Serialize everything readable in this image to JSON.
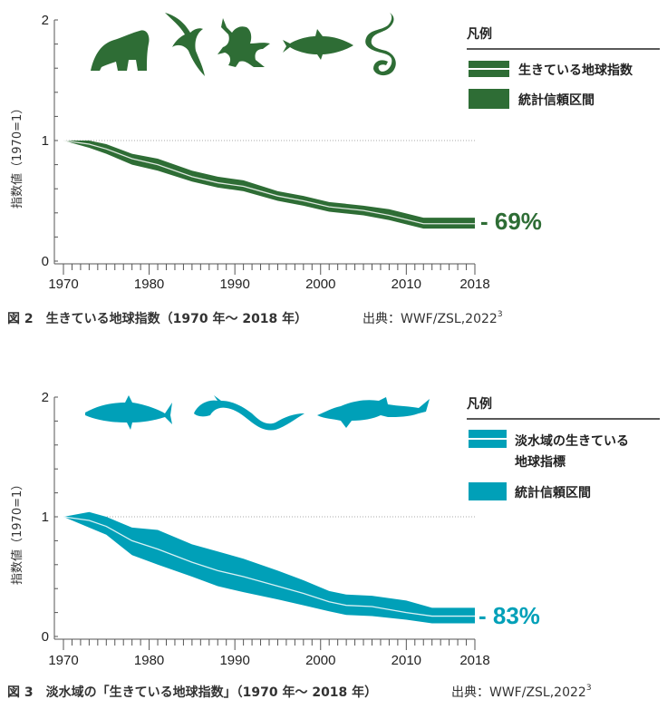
{
  "chart_data": [
    {
      "type": "area",
      "title": "図 2　生きている地球指数（1970 年～ 2018 年）",
      "source": "出典：WWF/ZSL,2022",
      "source_sup": "3",
      "ylabel": "指数値（1970=1）",
      "ylim": [
        0,
        2
      ],
      "yticks": [
        "0",
        "1",
        "2"
      ],
      "xlim": [
        1970,
        2018
      ],
      "xticks": [
        "1970",
        "1980",
        "1990",
        "2000",
        "2010",
        "2018"
      ],
      "color": "#2e6d35",
      "legend_title": "凡例",
      "legend": [
        "生きている地球指数",
        "統計信頼区間"
      ],
      "annotation": "- 69%",
      "reference_line": 1,
      "icons": [
        "gorilla-icon",
        "bird-icon",
        "frog-icon",
        "fish-icon",
        "snake-icon"
      ],
      "x": [
        1970,
        1973,
        1975,
        1978,
        1981,
        1985,
        1988,
        1991,
        1995,
        1998,
        2001,
        2005,
        2008,
        2012,
        2015,
        2018
      ],
      "index": [
        1.0,
        0.97,
        0.93,
        0.85,
        0.8,
        0.7,
        0.65,
        0.62,
        0.54,
        0.5,
        0.45,
        0.42,
        0.38,
        0.31,
        0.31,
        0.31
      ],
      "lower": [
        1.0,
        0.94,
        0.89,
        0.8,
        0.75,
        0.66,
        0.61,
        0.58,
        0.5,
        0.46,
        0.41,
        0.38,
        0.34,
        0.27,
        0.27,
        0.27
      ],
      "upper": [
        1.0,
        1.0,
        0.97,
        0.89,
        0.85,
        0.75,
        0.7,
        0.67,
        0.58,
        0.54,
        0.49,
        0.46,
        0.43,
        0.36,
        0.36,
        0.36
      ]
    },
    {
      "type": "area",
      "title": "図 3　淡水域の「生きている地球指数」（1970 年～ 2018 年）",
      "source": "出典：WWF/ZSL,2022",
      "source_sup": "3",
      "ylabel": "指数値（1970=1）",
      "ylim": [
        0,
        2
      ],
      "yticks": [
        "0",
        "1",
        "2"
      ],
      "xlim": [
        1970,
        2018
      ],
      "xticks": [
        "1970",
        "1980",
        "1990",
        "2000",
        "2010",
        "2018"
      ],
      "color": "#00a0b8",
      "legend_title": "凡例",
      "legend": [
        "淡水域の生きている",
        "地球指標",
        "統計信頼区間"
      ],
      "annotation": "- 83%",
      "reference_line": 1,
      "icons": [
        "salmon-icon",
        "eel-icon",
        "sturgeon-icon"
      ],
      "x": [
        1970,
        1973,
        1975,
        1978,
        1981,
        1985,
        1988,
        1991,
        1995,
        1998,
        2001,
        2003,
        2006,
        2010,
        2013,
        2018
      ],
      "index": [
        1.0,
        0.97,
        0.92,
        0.8,
        0.73,
        0.62,
        0.55,
        0.5,
        0.42,
        0.36,
        0.29,
        0.26,
        0.25,
        0.2,
        0.17,
        0.17
      ],
      "lower": [
        1.0,
        0.91,
        0.85,
        0.68,
        0.6,
        0.5,
        0.42,
        0.37,
        0.31,
        0.26,
        0.21,
        0.18,
        0.17,
        0.14,
        0.11,
        0.11
      ],
      "upper": [
        1.0,
        1.04,
        1.0,
        0.91,
        0.89,
        0.77,
        0.71,
        0.65,
        0.55,
        0.47,
        0.38,
        0.35,
        0.34,
        0.3,
        0.24,
        0.24
      ]
    }
  ]
}
